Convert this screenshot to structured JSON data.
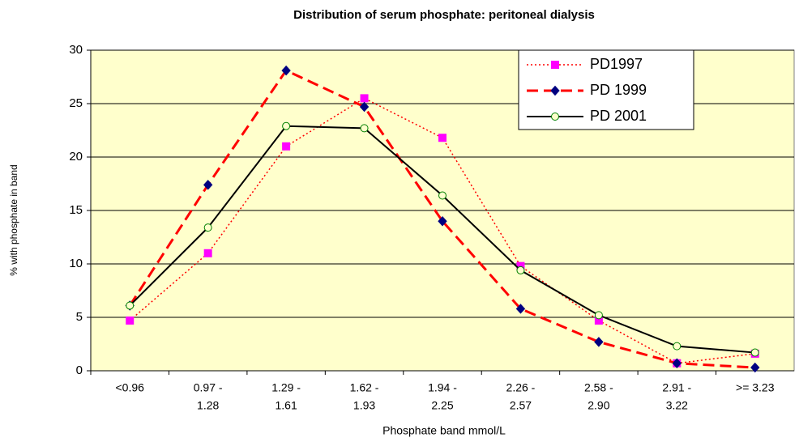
{
  "chart_data": {
    "type": "line",
    "title": "Distribution of serum phosphate:  peritoneal dialysis",
    "x_label": "Phosphate band mmol/L",
    "y_label": "% with phosphate in band",
    "categories": [
      [
        "<0.96"
      ],
      [
        "0.97 -",
        "1.28"
      ],
      [
        "1.29 -",
        "1.61"
      ],
      [
        "1.62 -",
        "1.93"
      ],
      [
        "1.94 -",
        "2.25"
      ],
      [
        "2.26 -",
        "2.57"
      ],
      [
        "2.58 -",
        "2.90"
      ],
      [
        "2.91 -",
        "3.22"
      ],
      [
        ">= 3.23"
      ]
    ],
    "series": [
      {
        "name": "PD1997",
        "color": "#ff0000",
        "marker_color": "#ff00ff",
        "marker": "square",
        "line_style": "dotted",
        "values": [
          4.7,
          11,
          21,
          25.5,
          21.8,
          9.8,
          4.7,
          0.7,
          1.6
        ]
      },
      {
        "name": "PD 1999",
        "color": "#ff0000",
        "marker_color": "#000080",
        "marker": "diamond",
        "line_style": "dashed",
        "values": [
          6.1,
          17.4,
          28.1,
          24.7,
          14,
          5.8,
          2.7,
          0.7,
          0.3
        ]
      },
      {
        "name": "PD 2001",
        "color": "#000000",
        "marker_color": "#008000",
        "marker": "circle",
        "line_style": "solid",
        "values": [
          6.1,
          13.4,
          22.9,
          22.7,
          16.4,
          9.4,
          5.2,
          2.3,
          1.7
        ]
      }
    ],
    "ylim": [
      0,
      30
    ],
    "yticks": [
      0,
      5,
      10,
      15,
      20,
      25,
      30
    ],
    "grid": true,
    "plot_background": "#ffffcc",
    "legend": "top-right"
  }
}
